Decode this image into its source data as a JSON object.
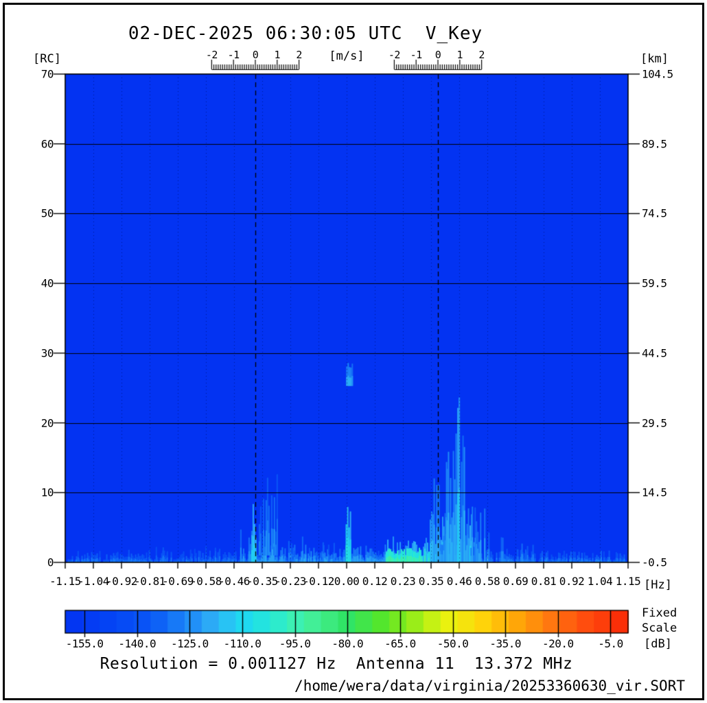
{
  "header": {
    "title": "02-DEC-2025 06:30:05 UTC  V_Key"
  },
  "units": {
    "y_left": "[RC]",
    "y_right": "[km]",
    "velocity": "[m/s]",
    "x_axis": "[Hz]",
    "colorbar": "[dB]",
    "scale_note_line1": "Fixed",
    "scale_note_line2": "Scale"
  },
  "footer": {
    "info_line": "Resolution = 0.001127 Hz  Antenna 11  13.372 MHz",
    "file_path": "/home/wera/data/virginia/20253360630_vir.SORT"
  },
  "chart_data": {
    "type": "heatmap",
    "title": "02-DEC-2025 06:30:05 UTC  V_Key",
    "xlabel": "[Hz]",
    "ylabel_left": "[RC]",
    "ylabel_right": "[km]",
    "xlim": [
      -1.15,
      1.15
    ],
    "ylim_rc": [
      0,
      70
    ],
    "ylim_km": [
      -0.5,
      104.5
    ],
    "x_ticks": [
      "-1.15",
      "-1.04",
      "-0.92",
      "-0.81",
      "-0.69",
      "-0.58",
      "-0.46",
      "-0.35",
      "-0.23",
      "-0.12",
      "0.00",
      "0.12",
      "0.23",
      "0.35",
      "0.46",
      "0.58",
      "0.69",
      "0.81",
      "0.92",
      "1.04",
      "1.15"
    ],
    "y_left_ticks": [
      "70",
      "60",
      "50",
      "40",
      "30",
      "20",
      "10",
      "0"
    ],
    "y_right_ticks": [
      "104.5",
      "89.5",
      "74.5",
      "59.5",
      "44.5",
      "29.5",
      "14.5",
      "-0.5"
    ],
    "velocity_scale": {
      "label": "[m/s]",
      "tick_labels": [
        "-2",
        "-1",
        "0",
        "1",
        "2"
      ],
      "centers_hz": [
        -0.3731,
        0.3731
      ],
      "hz_per_ms": 0.0892
    },
    "bragg_lines_hz": [
      -0.3731,
      0.3731
    ],
    "grid": {
      "h_lines_rc": [
        10,
        20,
        30,
        40,
        50,
        60
      ],
      "v_dotted_at_x_ticks": true,
      "color": "#000000"
    },
    "background_color": "#0333f2",
    "colorbar": {
      "label": "[dB]",
      "note": "Fixed Scale",
      "tick_labels": [
        "-155.0",
        "-140.0",
        "-125.0",
        "-110.0",
        "-95.0",
        "-80.0",
        "-65.0",
        "-50.0",
        "-35.0",
        "-20.0",
        "-5.0"
      ],
      "tick_values": [
        -155,
        -140,
        -125,
        -110,
        -95,
        -80,
        -65,
        -50,
        -35,
        -20,
        -5
      ],
      "range_db": [
        -160.5,
        0
      ],
      "segments": 33,
      "stops": [
        [
          -160.5,
          "#0333f2"
        ],
        [
          -148,
          "#0443f4"
        ],
        [
          -136,
          "#0a58f6"
        ],
        [
          -126,
          "#1c86f8"
        ],
        [
          -118,
          "#2fb0f6"
        ],
        [
          -110,
          "#1fd8f2"
        ],
        [
          -102,
          "#25e8d8"
        ],
        [
          -95,
          "#3cf0b4"
        ],
        [
          -88,
          "#44ee8c"
        ],
        [
          -80,
          "#2fe465"
        ],
        [
          -70,
          "#55e62a"
        ],
        [
          -62,
          "#8fec1a"
        ],
        [
          -52,
          "#e8f410"
        ],
        [
          -42,
          "#ffd60a"
        ],
        [
          -32,
          "#ffa808"
        ],
        [
          -22,
          "#ff7810"
        ],
        [
          -12,
          "#ff4c0e"
        ],
        [
          -2,
          "#fa2e08"
        ]
      ]
    },
    "features": [
      {
        "name": "noise-floor-band",
        "f0": -1.14,
        "f1": 1.14,
        "rc0": 0,
        "rc1": 1.7,
        "db": -133,
        "density": 0.8,
        "p": 1.4,
        "min": 0.2
      },
      {
        "name": "left-sparse-speckle",
        "f0": -1.1,
        "f1": -0.45,
        "rc0": 0,
        "rc1": 2.6,
        "db": -136,
        "density": 0.3,
        "p": 2.0,
        "min": 0.15
      },
      {
        "name": "far-right-speckle",
        "f0": 0.6,
        "f1": 1.13,
        "rc0": 0,
        "rc1": 1.9,
        "db": -133,
        "density": 0.55,
        "p": 1.8,
        "min": 0.15
      },
      {
        "name": "mid-band",
        "f0": -0.4,
        "f1": 0.2,
        "rc0": 0,
        "rc1": 2.8,
        "db": -125,
        "density": 0.9,
        "p": 1.5,
        "min": 0.25
      },
      {
        "name": "pre-bragg-columns",
        "f0": -0.6,
        "f1": -0.52,
        "rc0": 0,
        "rc1": 2.5,
        "db": -134,
        "density": 0.5,
        "p": 1.8,
        "min": 0.2
      },
      {
        "name": "left-of-bragg-columns",
        "f0": -0.435,
        "f1": -0.39,
        "rc0": 0,
        "rc1": 6,
        "db": -128,
        "density": 0.7,
        "p": 1.6,
        "min": 0.2
      },
      {
        "name": "mid-faint-columns",
        "f0": -0.25,
        "f1": -0.02,
        "rc0": 0,
        "rc1": 4.5,
        "db": -132,
        "density": 0.4,
        "p": 2.0,
        "min": 0.15
      },
      {
        "name": "left-bragg-cloud",
        "f0": -0.365,
        "f1": -0.285,
        "rc0": 1,
        "rc1": 13,
        "db": -130,
        "density": 0.8,
        "p": 1.7,
        "min": 0.2
      },
      {
        "name": "left-bragg-streak",
        "f0": -0.39,
        "f1": -0.362,
        "rc0": 0,
        "rc1": 8.5,
        "db": -114,
        "density": 0.85,
        "p": 1.2,
        "min": 0.3
      },
      {
        "name": "streak-minus-0p30",
        "f0": -0.306,
        "f1": -0.297,
        "rc0": 0,
        "rc1": 5,
        "db": -122,
        "density": 1,
        "p": 1.0,
        "min": 0.4
      },
      {
        "name": "strong-band-upper",
        "f0": 0.16,
        "f1": 0.33,
        "rc0": 0,
        "rc1": 3.8,
        "db": -117,
        "density": 0.9,
        "p": 1.4,
        "min": 0.3
      },
      {
        "name": "strong-band",
        "f0": 0.16,
        "f1": 0.46,
        "rc0": 0,
        "rc1": 2.1,
        "db": -99,
        "density": 1.0,
        "p": 0.9,
        "min": 0.45
      },
      {
        "name": "right-bragg-low-cloud",
        "f0": 0.3,
        "f1": 0.53,
        "rc0": 0,
        "rc1": 7.5,
        "db": -118,
        "density": 0.9,
        "p": 1.3,
        "min": 0.3
      },
      {
        "name": "post-bragg-columns",
        "f0": 0.5,
        "f1": 0.6,
        "rc0": 0,
        "rc1": 9,
        "db": -127,
        "density": 0.65,
        "p": 1.6,
        "min": 0.2
      },
      {
        "name": "faint-cloud-0p7",
        "f0": 0.63,
        "f1": 0.76,
        "rc0": 0,
        "rc1": 4,
        "db": -130,
        "density": 0.8,
        "p": 1.6,
        "min": 0.2
      },
      {
        "name": "right-bragg-streaks",
        "f0": 0.355,
        "f1": 0.5,
        "rc0": 0,
        "rc1": 21,
        "db": -124,
        "density": 0.55,
        "p": 1.8,
        "min": 0.12,
        "w": 2
      },
      {
        "name": "bragg-line-streak",
        "f0": 0.369,
        "f1": 0.377,
        "rc0": 0,
        "rc1": 16,
        "db": -120,
        "density": 1,
        "p": 1.0,
        "min": 0.4
      },
      {
        "name": "tall-streak-0p41",
        "f0": 0.408,
        "f1": 0.414,
        "rc0": 0,
        "rc1": 20,
        "db": -120,
        "density": 1,
        "p": 0.8,
        "min": 0.5
      },
      {
        "name": "tall-streak-0p455",
        "f0": 0.452,
        "f1": 0.459,
        "rc0": 0,
        "rc1": 27.5,
        "db": -117,
        "density": 1,
        "p": 0.6,
        "min": 0.6
      },
      {
        "name": "zero-hz-column",
        "f0": -0.004,
        "f1": 0.014,
        "rc0": 0,
        "rc1": 8,
        "db": -110,
        "density": 1,
        "p": 0.8,
        "min": 0.45
      },
      {
        "name": "zero-hz-upper-blob",
        "f0": -0.002,
        "f1": 0.026,
        "rc0": 25.3,
        "rc1": 28.6,
        "db": -124,
        "density": 1,
        "p": 0.4,
        "min": 0.7
      }
    ],
    "annotations": {
      "resolution": "Resolution = 0.001127 Hz  Antenna 11  13.372 MHz",
      "source_file": "/home/wera/data/virginia/20253360630_vir.SORT"
    }
  }
}
